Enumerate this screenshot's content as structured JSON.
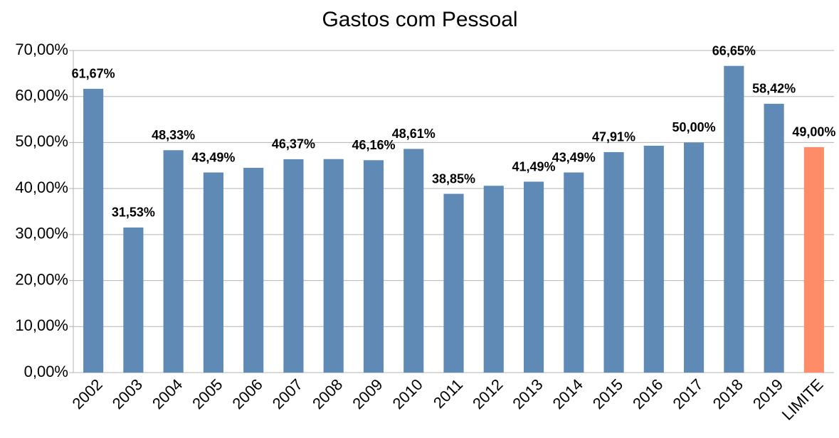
{
  "chart_data": {
    "type": "bar",
    "title": "Gastos com Pessoal",
    "categories": [
      "2002",
      "2003",
      "2004",
      "2005",
      "2006",
      "2007",
      "2008",
      "2009",
      "2010",
      "2011",
      "2012",
      "2013",
      "2014",
      "2015",
      "2016",
      "2017",
      "2018",
      "2019",
      "LIMITE"
    ],
    "values": [
      61.67,
      31.53,
      48.33,
      43.49,
      44.5,
      46.37,
      46.4,
      46.16,
      48.61,
      38.85,
      40.6,
      41.49,
      43.49,
      47.91,
      49.3,
      50.0,
      66.65,
      58.42,
      49.0
    ],
    "value_labels": [
      "61,67%",
      "31,53%",
      "48,33%",
      "43,49%",
      null,
      "46,37%",
      null,
      "46,16%",
      "48,61%",
      "38,85%",
      null,
      "41,49%",
      "43,49%",
      "47,91%",
      null,
      "50,00%",
      "66,65%",
      "58,42%",
      "49,00%"
    ],
    "colors": [
      "#5f8ab5",
      "#5f8ab5",
      "#5f8ab5",
      "#5f8ab5",
      "#5f8ab5",
      "#5f8ab5",
      "#5f8ab5",
      "#5f8ab5",
      "#5f8ab5",
      "#5f8ab5",
      "#5f8ab5",
      "#5f8ab5",
      "#5f8ab5",
      "#5f8ab5",
      "#5f8ab5",
      "#5f8ab5",
      "#5f8ab5",
      "#5f8ab5",
      "#ff8c69"
    ],
    "ylim": [
      0,
      70
    ],
    "yticks": [
      {
        "value": 0,
        "label": "0,00%"
      },
      {
        "value": 10,
        "label": "10,00%"
      },
      {
        "value": 20,
        "label": "20,00%"
      },
      {
        "value": 30,
        "label": "30,00%"
      },
      {
        "value": 40,
        "label": "40,00%"
      },
      {
        "value": 50,
        "label": "50,00%"
      },
      {
        "value": 60,
        "label": "60,00%"
      },
      {
        "value": 70,
        "label": "70,00%"
      }
    ],
    "grid": true
  }
}
